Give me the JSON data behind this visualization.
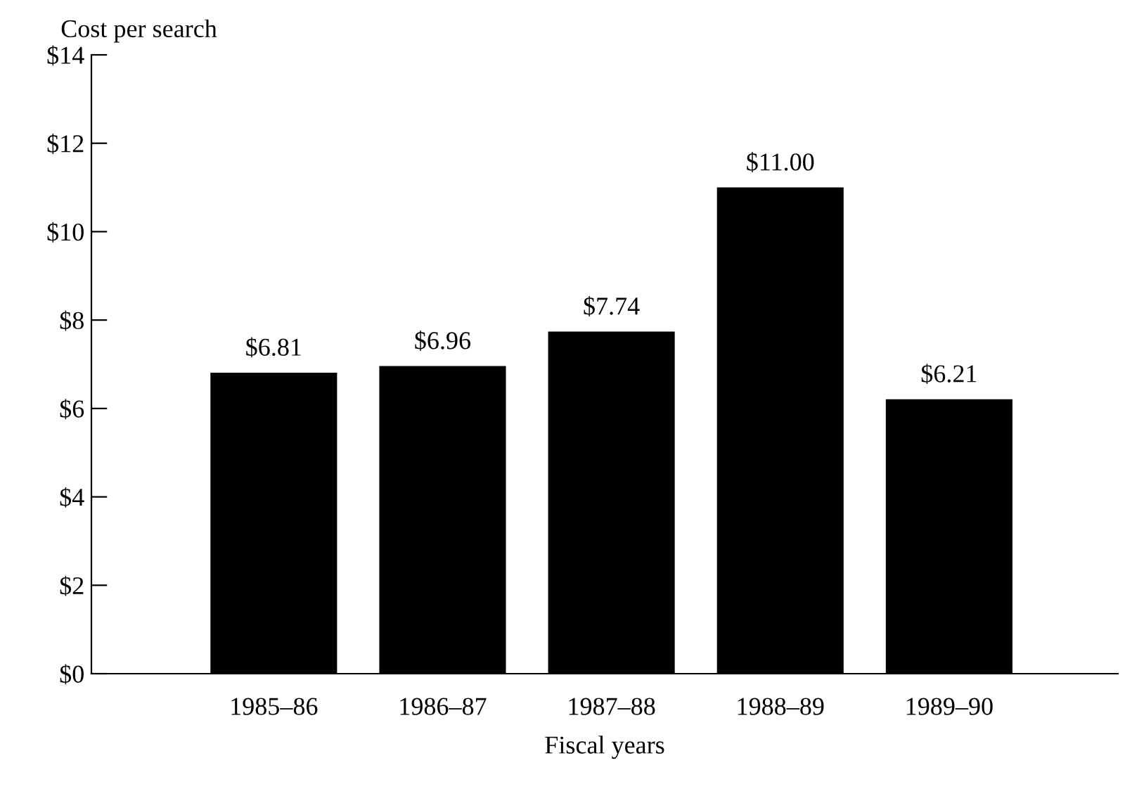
{
  "chart_data": {
    "type": "bar",
    "ylabel": "Cost per search",
    "xlabel": "Fiscal years",
    "categories": [
      "1985–86",
      "1986–87",
      "1987–88",
      "1988–89",
      "1989–90"
    ],
    "values": [
      6.81,
      6.96,
      7.74,
      11.0,
      6.21
    ],
    "value_labels": [
      "$6.81",
      "$6.96",
      "$7.74",
      "$11.00",
      "$6.21"
    ],
    "color": "#000000",
    "ylim": [
      0,
      14
    ],
    "yticks": [
      {
        "value": 0,
        "label": "$0"
      },
      {
        "value": 2,
        "label": "$2"
      },
      {
        "value": 4,
        "label": "$4"
      },
      {
        "value": 6,
        "label": "$6"
      },
      {
        "value": 8,
        "label": "$8"
      },
      {
        "value": 10,
        "label": "$10"
      },
      {
        "value": 12,
        "label": "$12"
      },
      {
        "value": 14,
        "label": "$14"
      }
    ],
    "grid": false,
    "legend": false
  }
}
